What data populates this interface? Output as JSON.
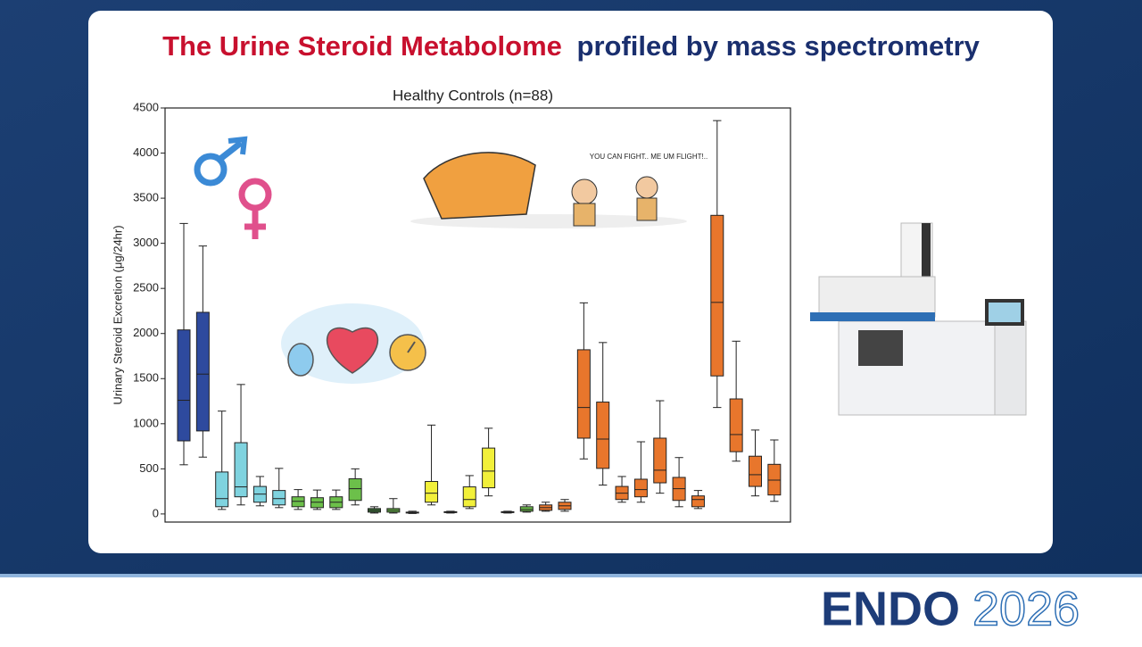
{
  "slide": {
    "title_highlight": "The Urine Steroid Metabolome",
    "title_rest": "profiled by mass spectrometry",
    "cartoon_caption": "YOU CAN FIGHT.. ME UM FLIGHT!..",
    "logo_word": "ENDO",
    "logo_year": "2026"
  },
  "chart_data": {
    "type": "box",
    "title": "Healthy Controls (n=88)",
    "y_label": "Urinary Steroid Excretion (μg/24hr)",
    "ylim": [
      -90,
      4500
    ],
    "yticks": [
      0,
      500,
      1000,
      1500,
      2000,
      2500,
      3000,
      3500,
      4000,
      4500
    ],
    "boxes": [
      {
        "min": 545,
        "q1": 810,
        "median": 1260,
        "q3": 2040,
        "max": 3220,
        "color": "#2e4a9e"
      },
      {
        "min": 630,
        "q1": 920,
        "median": 1550,
        "q3": 2235,
        "max": 2970,
        "color": "#2e4a9e"
      },
      {
        "min": 50,
        "q1": 80,
        "median": 170,
        "q3": 465,
        "max": 1140,
        "color": "#7fd3df"
      },
      {
        "min": 100,
        "q1": 190,
        "median": 300,
        "q3": 790,
        "max": 1435,
        "color": "#7fd3df"
      },
      {
        "min": 90,
        "q1": 130,
        "median": 220,
        "q3": 305,
        "max": 415,
        "color": "#7fd3df"
      },
      {
        "min": 70,
        "q1": 100,
        "median": 170,
        "q3": 260,
        "max": 505,
        "color": "#7fd3df"
      },
      {
        "min": 50,
        "q1": 80,
        "median": 140,
        "q3": 190,
        "max": 270,
        "color": "#6cc04a"
      },
      {
        "min": 50,
        "q1": 70,
        "median": 130,
        "q3": 180,
        "max": 265,
        "color": "#6cc04a"
      },
      {
        "min": 50,
        "q1": 70,
        "median": 130,
        "q3": 190,
        "max": 265,
        "color": "#6cc04a"
      },
      {
        "min": 100,
        "q1": 150,
        "median": 280,
        "q3": 390,
        "max": 500,
        "color": "#6cc04a"
      },
      {
        "min": 10,
        "q1": 20,
        "median": 40,
        "q3": 60,
        "max": 80,
        "color": "#3f7a3a"
      },
      {
        "min": 10,
        "q1": 20,
        "median": 40,
        "q3": 60,
        "max": 170,
        "color": "#6cc04a"
      },
      {
        "min": 5,
        "q1": 10,
        "median": 15,
        "q3": 20,
        "max": 30,
        "color": "#333333"
      },
      {
        "min": 100,
        "q1": 130,
        "median": 230,
        "q3": 360,
        "max": 985,
        "color": "#f2f03a"
      },
      {
        "min": 10,
        "q1": 15,
        "median": 20,
        "q3": 25,
        "max": 30,
        "color": "#333333"
      },
      {
        "min": 60,
        "q1": 80,
        "median": 160,
        "q3": 300,
        "max": 425,
        "color": "#f2f03a"
      },
      {
        "min": 200,
        "q1": 290,
        "median": 475,
        "q3": 730,
        "max": 950,
        "color": "#f2f03a"
      },
      {
        "min": 10,
        "q1": 15,
        "median": 20,
        "q3": 25,
        "max": 30,
        "color": "#333333"
      },
      {
        "min": 20,
        "q1": 30,
        "median": 50,
        "q3": 80,
        "max": 100,
        "color": "#6cc04a"
      },
      {
        "min": 30,
        "q1": 40,
        "median": 70,
        "q3": 100,
        "max": 130,
        "color": "#e8762c"
      },
      {
        "min": 30,
        "q1": 50,
        "median": 90,
        "q3": 130,
        "max": 160,
        "color": "#e8762c"
      },
      {
        "min": 610,
        "q1": 840,
        "median": 1180,
        "q3": 1820,
        "max": 2340,
        "color": "#e8762c"
      },
      {
        "min": 320,
        "q1": 505,
        "median": 830,
        "q3": 1240,
        "max": 1900,
        "color": "#e8762c"
      },
      {
        "min": 130,
        "q1": 160,
        "median": 230,
        "q3": 305,
        "max": 415,
        "color": "#e8762c"
      },
      {
        "min": 130,
        "q1": 190,
        "median": 270,
        "q3": 385,
        "max": 800,
        "color": "#e8762c"
      },
      {
        "min": 230,
        "q1": 345,
        "median": 485,
        "q3": 840,
        "max": 1255,
        "color": "#e8762c"
      },
      {
        "min": 80,
        "q1": 150,
        "median": 280,
        "q3": 405,
        "max": 625,
        "color": "#e8762c"
      },
      {
        "min": 60,
        "q1": 80,
        "median": 160,
        "q3": 200,
        "max": 260,
        "color": "#e8762c"
      },
      {
        "min": 1180,
        "q1": 1530,
        "median": 2345,
        "q3": 3310,
        "max": 4360,
        "color": "#e8762c"
      },
      {
        "min": 585,
        "q1": 690,
        "median": 880,
        "q3": 1275,
        "max": 1915,
        "color": "#e8762c"
      },
      {
        "min": 200,
        "q1": 305,
        "median": 435,
        "q3": 640,
        "max": 930,
        "color": "#e8762c"
      },
      {
        "min": 140,
        "q1": 210,
        "median": 375,
        "q3": 550,
        "max": 820,
        "color": "#e8762c"
      }
    ]
  }
}
